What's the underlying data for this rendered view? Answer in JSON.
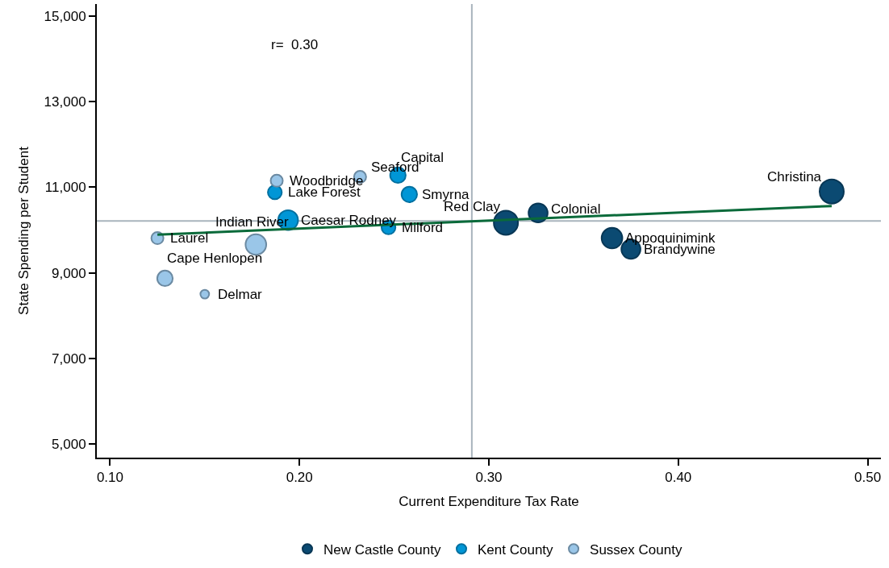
{
  "chart_data": {
    "type": "bubble",
    "xlabel": "Current Expenditure Tax Rate",
    "ylabel": "State Spending per Student",
    "series": [
      {
        "name": "New Castle County",
        "color": "#0b4a72",
        "x": [
          0.481,
          0.326,
          0.309,
          0.365,
          0.375
        ],
        "values": [
          10900,
          10400,
          10170,
          9810,
          9550
        ],
        "sizes": [
          1,
          0.62,
          1,
          0.73,
          0.62
        ]
      },
      {
        "name": "Kent County",
        "color": "#0096d6",
        "x": [
          0.252,
          0.258,
          0.194,
          0.187,
          0.247
        ],
        "values": [
          11280,
          10830,
          10230,
          10880,
          10060
        ],
        "sizes": [
          0.41,
          0.41,
          0.67,
          0.33,
          0.33
        ]
      },
      {
        "name": "Sussex County",
        "color": "#9ac6e8",
        "x": [
          0.188,
          0.232,
          0.125,
          0.177,
          0.129,
          0.15
        ],
        "values": [
          11150,
          11240,
          9810,
          9660,
          8870,
          8500
        ],
        "sizes": [
          0.25,
          0.25,
          0.25,
          0.73,
          0.41,
          0.13
        ]
      },
      {
        "type": "line",
        "color": "#0a6a3a",
        "marker": "none",
        "x": [
          0.125,
          0.481
        ],
        "values": [
          9890,
          10560
        ]
      }
    ],
    "annotations": [
      "r=  0.30",
      {
        "text": "Christina",
        "x": 0.481,
        "y": 10900
      },
      {
        "text": "Colonial",
        "x": 0.326,
        "y": 10400
      },
      {
        "text": "Red Clay",
        "x": 0.309,
        "y": 10170
      },
      {
        "text": "Appoquinimink",
        "x": 0.365,
        "y": 9810
      },
      {
        "text": "Brandywine",
        "x": 0.375,
        "y": 9550
      },
      {
        "text": "Capital",
        "x": 0.252,
        "y": 11280
      },
      {
        "text": "Smyrna",
        "x": 0.258,
        "y": 10830
      },
      {
        "text": "Caesar Rodney",
        "x": 0.194,
        "y": 10230
      },
      {
        "text": "Lake Forest",
        "x": 0.187,
        "y": 10880
      },
      {
        "text": "Milford",
        "x": 0.247,
        "y": 10060
      },
      {
        "text": "Woodbridge",
        "x": 0.188,
        "y": 11150
      },
      {
        "text": "Seaford",
        "x": 0.232,
        "y": 11240
      },
      {
        "text": "Laurel",
        "x": 0.125,
        "y": 9810
      },
      {
        "text": "Indian River",
        "x": 0.177,
        "y": 9660
      },
      {
        "text": "Cape Henlopen",
        "x": 0.129,
        "y": 8870
      },
      {
        "text": "Delmar",
        "x": 0.15,
        "y": 8500
      }
    ],
    "ref_lines": [
      {
        "axis": "x",
        "value": 0.291,
        "color": "#a9b4bd"
      },
      {
        "axis": "y",
        "value": 10210,
        "color": "#a9b4bd"
      }
    ],
    "xlim": [
      0.093,
      0.507
    ],
    "ylim": [
      4680,
      15280
    ],
    "xticks": [
      {
        "value": 0.1,
        "label": "0.10"
      },
      {
        "value": 0.2,
        "label": "0.20"
      },
      {
        "value": 0.3,
        "label": "0.30"
      },
      {
        "value": 0.4,
        "label": "0.40"
      },
      {
        "value": 0.5,
        "label": "0.50"
      }
    ],
    "yticks": [
      {
        "value": 5000,
        "label": "5,000"
      },
      {
        "value": 7000,
        "label": "7,000"
      },
      {
        "value": 9000,
        "label": "9,000"
      },
      {
        "value": 11000,
        "label": "11,000"
      },
      {
        "value": 13000,
        "label": "13,000"
      },
      {
        "value": 15000,
        "label": "15,000"
      }
    ],
    "grid": false,
    "legend": "bottom",
    "marker": "circle"
  }
}
